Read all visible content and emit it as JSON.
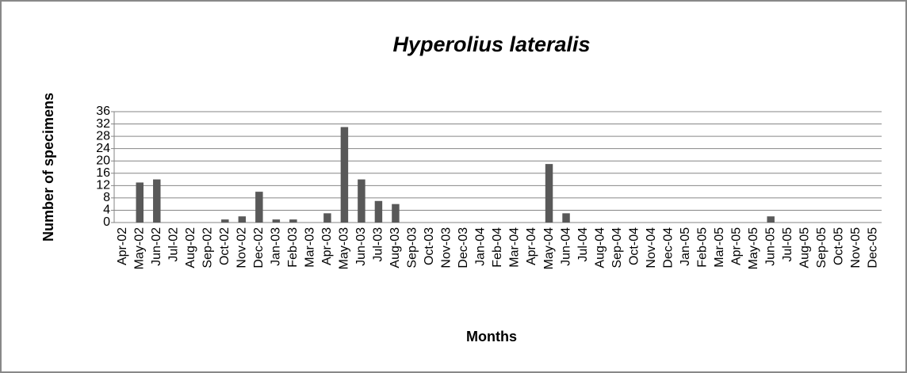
{
  "chart_data": {
    "type": "bar",
    "title": "Hyperolius lateralis",
    "x_label": "Months",
    "y_label": "Number of specimens",
    "categories": [
      "Apr-02",
      "May-02",
      "Jun-02",
      "Jul-02",
      "Aug-02",
      "Sep-02",
      "Oct-02",
      "Nov-02",
      "Dec-02",
      "Jan-03",
      "Feb-03",
      "Mar-03",
      "Apr-03",
      "May-03",
      "Jun-03",
      "Jul-03",
      "Aug-03",
      "Sep-03",
      "Oct-03",
      "Nov-03",
      "Dec-03",
      "Jan-04",
      "Feb-04",
      "Mar-04",
      "Apr-04",
      "May-04",
      "Jun-04",
      "Jul-04",
      "Aug-04",
      "Sep-04",
      "Oct-04",
      "Nov-04",
      "Dec-04",
      "Jan-05",
      "Feb-05",
      "Mar-05",
      "Apr-05",
      "May-05",
      "Jun-05",
      "Jul-05",
      "Aug-05",
      "Sep-05",
      "Oct-05",
      "Nov-05",
      "Dec-05"
    ],
    "values": [
      0,
      13,
      14,
      0,
      0,
      0,
      1,
      2,
      10,
      1,
      1,
      0,
      3,
      31,
      14,
      7,
      6,
      0,
      0,
      0,
      0,
      0,
      0,
      0,
      0,
      19,
      3,
      0,
      0,
      0,
      0,
      0,
      0,
      0,
      0,
      0,
      0,
      0,
      2,
      0,
      0,
      0,
      0,
      0,
      0
    ],
    "color": "#595959",
    "ylim": [
      0,
      36
    ],
    "yticks": [
      0,
      4,
      8,
      12,
      16,
      20,
      24,
      28,
      32,
      36
    ],
    "grid": true
  }
}
